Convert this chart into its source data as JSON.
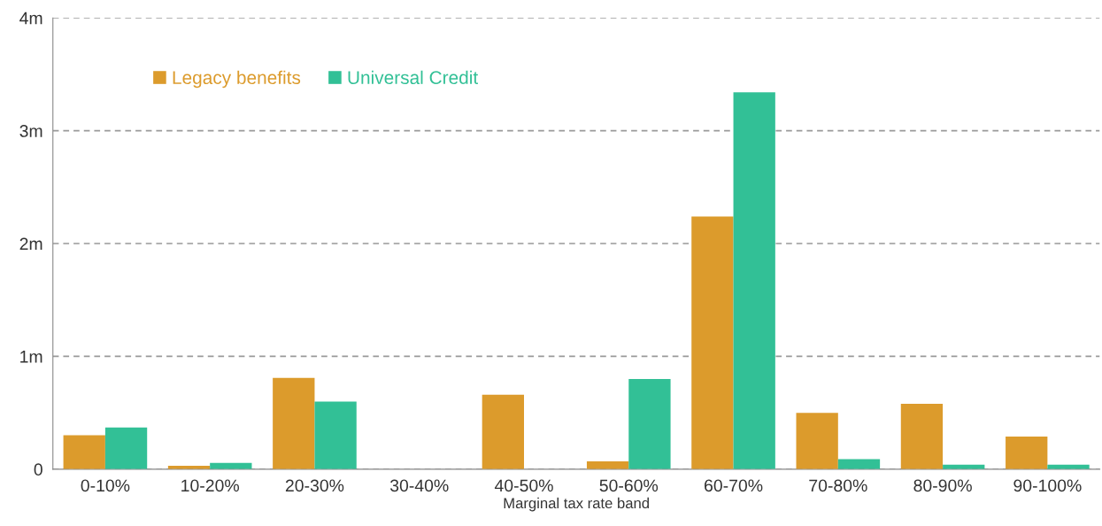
{
  "chart_data": {
    "type": "bar",
    "xlabel": "Marginal tax rate band",
    "categories": [
      "0-10%",
      "10-20%",
      "20-30%",
      "30-40%",
      "40-50%",
      "50-60%",
      "60-70%",
      "70-80%",
      "80-90%",
      "90-100%"
    ],
    "series": [
      {
        "name": "Legacy benefits",
        "color": "#dc9b2c",
        "values": [
          0.3,
          0.03,
          0.81,
          0,
          0.66,
          0.07,
          2.24,
          0.5,
          0.58,
          0.29
        ]
      },
      {
        "name": "Universal Credit",
        "color": "#32c096",
        "values": [
          0.37,
          0.055,
          0.6,
          0,
          0,
          0.8,
          3.34,
          0.09,
          0.04,
          0.04
        ]
      }
    ],
    "ylim": [
      0,
      4
    ],
    "yticks": [
      {
        "value": 0,
        "label": "0"
      },
      {
        "value": 1,
        "label": "1m"
      },
      {
        "value": 2,
        "label": "2m"
      },
      {
        "value": 3,
        "label": "3m"
      },
      {
        "value": 4,
        "label": "4m"
      }
    ],
    "grid": "y",
    "legend": "top left"
  }
}
